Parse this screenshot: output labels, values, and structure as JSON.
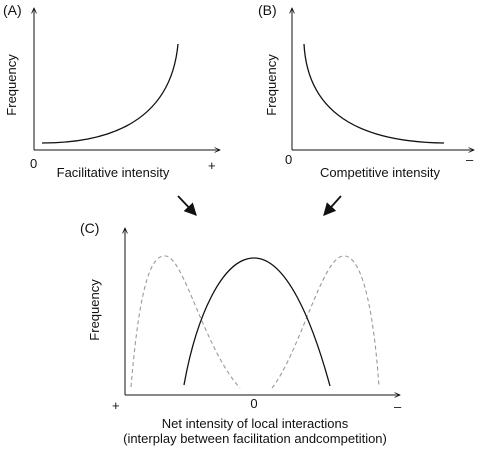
{
  "panels": {
    "a": {
      "label": "(A)",
      "ylabel": "Frequency",
      "xlabel": "Facilitative intensity",
      "tick_start": "0",
      "tick_end": "+"
    },
    "b": {
      "label": "(B)",
      "ylabel": "Frequency",
      "xlabel": "Competitive intensity",
      "tick_start": "0",
      "tick_end": "–"
    },
    "c": {
      "label": "(C)",
      "ylabel": "Frequency",
      "xlabel_line1": "Net intensity of local interactions",
      "xlabel_line2": "(interplay between facilitation andcompetition)",
      "tick_left": "+",
      "tick_mid": "0",
      "tick_right": "–"
    }
  },
  "styles": {
    "line_color": "#111111",
    "dashed_color": "#9a9a9a"
  }
}
